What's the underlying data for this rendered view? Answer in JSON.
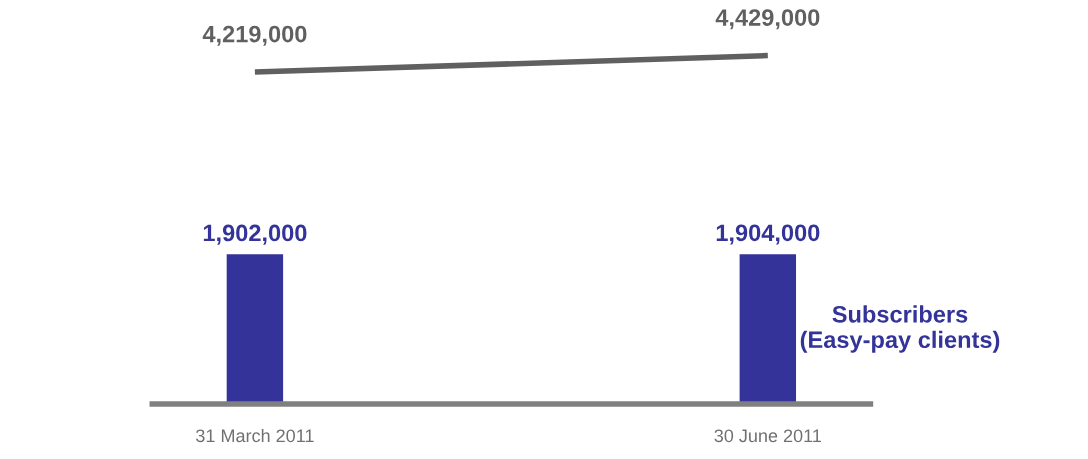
{
  "chart_data": {
    "type": "bar",
    "categories": [
      "31 March 2011",
      "30 June 2011"
    ],
    "legend": false,
    "grid": false,
    "series": [
      {
        "name": "Subscribers\n(Easy-pay clients)",
        "color": "#333399",
        "values": [
          1902000,
          1904000
        ],
        "value_labels": [
          "1,902,000",
          "1,904,000"
        ]
      },
      {
        "type": "line",
        "color": "#606060",
        "values": [
          4219000,
          4429000
        ],
        "value_labels": [
          "4,219,000",
          "4,429,000"
        ]
      }
    ]
  }
}
